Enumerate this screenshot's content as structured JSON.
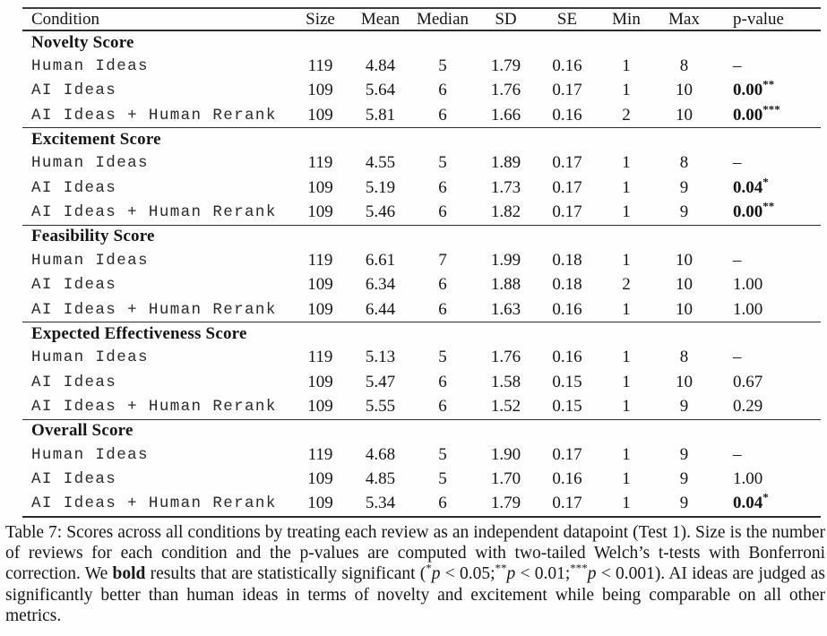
{
  "table": {
    "columns": [
      "Condition",
      "Size",
      "Mean",
      "Median",
      "SD",
      "SE",
      "Min",
      "Max",
      "p-value"
    ],
    "sections": [
      {
        "title": "Novelty Score",
        "rows": [
          {
            "condition": "Human Ideas",
            "size": "119",
            "mean": "4.84",
            "median": "5",
            "sd": "1.79",
            "se": "0.16",
            "min": "1",
            "max": "8",
            "p": "–",
            "stars": "",
            "bold": false
          },
          {
            "condition": "AI Ideas",
            "size": "109",
            "mean": "5.64",
            "median": "6",
            "sd": "1.76",
            "se": "0.17",
            "min": "1",
            "max": "10",
            "p": "0.00",
            "stars": "**",
            "bold": true
          },
          {
            "condition": "AI Ideas + Human Rerank",
            "size": "109",
            "mean": "5.81",
            "median": "6",
            "sd": "1.66",
            "se": "0.16",
            "min": "2",
            "max": "10",
            "p": "0.00",
            "stars": "***",
            "bold": true
          }
        ]
      },
      {
        "title": "Excitement Score",
        "rows": [
          {
            "condition": "Human Ideas",
            "size": "119",
            "mean": "4.55",
            "median": "5",
            "sd": "1.89",
            "se": "0.17",
            "min": "1",
            "max": "8",
            "p": "–",
            "stars": "",
            "bold": false
          },
          {
            "condition": "AI Ideas",
            "size": "109",
            "mean": "5.19",
            "median": "6",
            "sd": "1.73",
            "se": "0.17",
            "min": "1",
            "max": "9",
            "p": "0.04",
            "stars": "*",
            "bold": true
          },
          {
            "condition": "AI Ideas + Human Rerank",
            "size": "109",
            "mean": "5.46",
            "median": "6",
            "sd": "1.82",
            "se": "0.17",
            "min": "1",
            "max": "9",
            "p": "0.00",
            "stars": "**",
            "bold": true
          }
        ]
      },
      {
        "title": "Feasibility Score",
        "rows": [
          {
            "condition": "Human Ideas",
            "size": "119",
            "mean": "6.61",
            "median": "7",
            "sd": "1.99",
            "se": "0.18",
            "min": "1",
            "max": "10",
            "p": "–",
            "stars": "",
            "bold": false
          },
          {
            "condition": "AI Ideas",
            "size": "109",
            "mean": "6.34",
            "median": "6",
            "sd": "1.88",
            "se": "0.18",
            "min": "2",
            "max": "10",
            "p": "1.00",
            "stars": "",
            "bold": false
          },
          {
            "condition": "AI Ideas + Human Rerank",
            "size": "109",
            "mean": "6.44",
            "median": "6",
            "sd": "1.63",
            "se": "0.16",
            "min": "1",
            "max": "10",
            "p": "1.00",
            "stars": "",
            "bold": false
          }
        ]
      },
      {
        "title": "Expected Effectiveness Score",
        "rows": [
          {
            "condition": "Human Ideas",
            "size": "119",
            "mean": "5.13",
            "median": "5",
            "sd": "1.76",
            "se": "0.16",
            "min": "1",
            "max": "8",
            "p": "–",
            "stars": "",
            "bold": false
          },
          {
            "condition": "AI Ideas",
            "size": "109",
            "mean": "5.47",
            "median": "6",
            "sd": "1.58",
            "se": "0.15",
            "min": "1",
            "max": "10",
            "p": "0.67",
            "stars": "",
            "bold": false
          },
          {
            "condition": "AI Ideas + Human Rerank",
            "size": "109",
            "mean": "5.55",
            "median": "6",
            "sd": "1.52",
            "se": "0.15",
            "min": "1",
            "max": "9",
            "p": "0.29",
            "stars": "",
            "bold": false
          }
        ]
      },
      {
        "title": "Overall Score",
        "rows": [
          {
            "condition": "Human Ideas",
            "size": "119",
            "mean": "4.68",
            "median": "5",
            "sd": "1.90",
            "se": "0.17",
            "min": "1",
            "max": "9",
            "p": "–",
            "stars": "",
            "bold": false
          },
          {
            "condition": "AI Ideas",
            "size": "109",
            "mean": "4.85",
            "median": "5",
            "sd": "1.70",
            "se": "0.16",
            "min": "1",
            "max": "9",
            "p": "1.00",
            "stars": "",
            "bold": false
          },
          {
            "condition": "AI Ideas + Human Rerank",
            "size": "109",
            "mean": "5.34",
            "median": "6",
            "sd": "1.79",
            "se": "0.17",
            "min": "1",
            "max": "9",
            "p": "0.04",
            "stars": "*",
            "bold": true
          }
        ]
      }
    ]
  },
  "caption": {
    "segments": [
      {
        "text": "Table 7: Scores across all conditions by treating each review as an independent datapoint (Test 1).  Size is the number of reviews for each condition and the p-values are computed with two-tailed Welch’s t-tests with Bonferroni correction.  We ",
        "style": "normal"
      },
      {
        "text": "bold",
        "style": "bold"
      },
      {
        "text": " results that are statistically significant (",
        "style": "normal"
      },
      {
        "text": "*",
        "style": "sup"
      },
      {
        "text": "p",
        "style": "italic"
      },
      {
        "text": " < 0.05;",
        "style": "normal"
      },
      {
        "text": "**",
        "style": "sup"
      },
      {
        "text": "p",
        "style": "italic"
      },
      {
        "text": " < 0.01;",
        "style": "normal"
      },
      {
        "text": "***",
        "style": "sup"
      },
      {
        "text": "p",
        "style": "italic"
      },
      {
        "text": " < 0.001).  AI ideas are judged as significantly better than human ideas in terms of novelty and excitement while being comparable on all other metrics.",
        "style": "normal"
      }
    ]
  }
}
